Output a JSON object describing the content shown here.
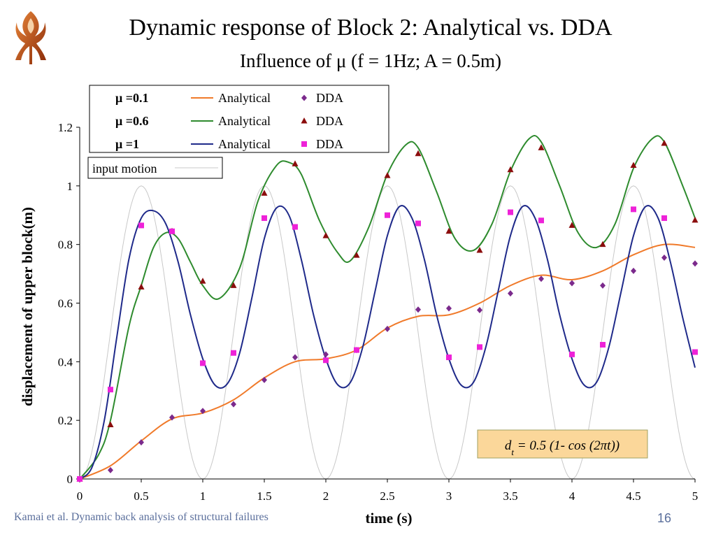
{
  "slide": {
    "title": "Dynamic response of Block 2: Analytical vs. DDA",
    "subtitle": "Influence of μ (f = 1Hz; A = 0.5m)",
    "footer": "Kamai et al. Dynamic back analysis of structural failures",
    "page_number": "16",
    "logo_icon": "university-logo-icon"
  },
  "chart_data": {
    "type": "line",
    "xlabel": "time (s)",
    "ylabel": "displacement of upper block(m)",
    "xlim": [
      0,
      5
    ],
    "ylim": [
      0,
      1.2
    ],
    "x_ticks": [
      "0",
      "0.5",
      "1",
      "1.5",
      "2",
      "2.5",
      "3",
      "3.5",
      "4",
      "4.5",
      "5"
    ],
    "y_ticks": [
      "0",
      "0.2",
      "0.4",
      "0.6",
      "0.8",
      "1",
      "1.2"
    ],
    "grid": false,
    "legend": {
      "placement": "top-left",
      "rows": [
        {
          "mu_label": "μ =0.1",
          "analytical_label": "Analytical",
          "dda_label": "DDA"
        },
        {
          "mu_label": "μ =0.6",
          "analytical_label": "Analytical",
          "dda_label": "DDA"
        },
        {
          "mu_label": "μ =1",
          "analytical_label": "Analytical",
          "dda_label": "DDA"
        }
      ],
      "input_label": "input motion"
    },
    "formula": "d_t = 0.5 (1- cos (2πt))",
    "series": [
      {
        "group": "μ =0.1",
        "kind": "analytical",
        "color": "#f07a2a",
        "x": [
          0,
          0.25,
          0.5,
          0.75,
          1.0,
          1.25,
          1.5,
          1.75,
          2.0,
          2.25,
          2.5,
          2.75,
          3.0,
          3.25,
          3.5,
          3.75,
          4.0,
          4.25,
          4.5,
          4.75,
          5.0
        ],
        "y": [
          0,
          0.045,
          0.13,
          0.205,
          0.225,
          0.27,
          0.345,
          0.4,
          0.41,
          0.44,
          0.515,
          0.555,
          0.56,
          0.6,
          0.66,
          0.695,
          0.68,
          0.71,
          0.765,
          0.8,
          0.79
        ]
      },
      {
        "group": "μ =0.1",
        "kind": "dda",
        "color": "#7b2a8c",
        "marker": "diamond",
        "x": [
          0,
          0.25,
          0.5,
          0.75,
          1.0,
          1.25,
          1.5,
          1.75,
          2.0,
          2.25,
          2.5,
          2.75,
          3.0,
          3.25,
          3.5,
          3.75,
          4.0,
          4.25,
          4.5,
          4.75,
          5.0
        ],
        "y": [
          0,
          0.03,
          0.125,
          0.21,
          0.232,
          0.255,
          0.338,
          0.415,
          0.425,
          0.44,
          0.512,
          0.578,
          0.582,
          0.576,
          0.633,
          0.683,
          0.668,
          0.66,
          0.71,
          0.755,
          0.735
        ]
      },
      {
        "group": "μ =0.6",
        "kind": "analytical",
        "color": "#2e8b2e",
        "x": [
          0,
          0.15,
          0.25,
          0.4,
          0.5,
          0.6,
          0.7,
          0.8,
          0.9,
          1.0,
          1.13,
          1.3,
          1.45,
          1.6,
          1.7,
          1.8,
          1.95,
          2.1,
          2.2,
          2.35,
          2.5,
          2.65,
          2.75,
          2.9,
          3.05,
          3.2,
          3.35,
          3.5,
          3.65,
          3.75,
          3.9,
          4.05,
          4.2,
          4.35,
          4.5,
          4.65,
          4.75,
          4.9,
          5.0
        ],
        "y": [
          0,
          0.08,
          0.2,
          0.52,
          0.66,
          0.79,
          0.84,
          0.82,
          0.74,
          0.66,
          0.615,
          0.72,
          0.95,
          1.07,
          1.08,
          1.04,
          0.88,
          0.77,
          0.745,
          0.86,
          1.04,
          1.14,
          1.13,
          0.98,
          0.82,
          0.78,
          0.87,
          1.05,
          1.16,
          1.15,
          1.0,
          0.84,
          0.79,
          0.87,
          1.06,
          1.16,
          1.15,
          1.0,
          0.89
        ]
      },
      {
        "group": "μ =0.6",
        "kind": "dda",
        "color": "#8b0d0d",
        "marker": "triangle",
        "x": [
          0,
          0.25,
          0.5,
          0.75,
          1.0,
          1.25,
          1.5,
          1.75,
          2.0,
          2.25,
          2.5,
          2.75,
          3.0,
          3.25,
          3.5,
          3.75,
          4.0,
          4.25,
          4.5,
          4.75,
          5.0
        ],
        "y": [
          0,
          0.185,
          0.655,
          0.845,
          0.675,
          0.66,
          0.975,
          1.075,
          0.83,
          0.763,
          1.035,
          1.11,
          0.845,
          0.78,
          1.055,
          1.13,
          0.865,
          0.8,
          1.07,
          1.145,
          0.883
        ]
      },
      {
        "group": "μ =1",
        "kind": "analytical",
        "color": "#1f2a8a",
        "x": [
          0,
          0.1,
          0.2,
          0.3,
          0.4,
          0.5,
          0.6,
          0.7,
          0.8,
          0.9,
          1.0,
          1.1,
          1.2,
          1.3,
          1.4,
          1.5,
          1.6,
          1.7,
          1.8,
          1.9,
          2.0,
          2.1,
          2.2,
          2.3,
          2.4,
          2.5,
          2.6,
          2.7,
          2.8,
          2.9,
          3.0,
          3.1,
          3.2,
          3.3,
          3.4,
          3.5,
          3.6,
          3.7,
          3.8,
          3.9,
          4.0,
          4.1,
          4.2,
          4.3,
          4.4,
          4.5,
          4.6,
          4.7,
          4.8,
          4.9,
          5.0
        ],
        "y": [
          0,
          0.04,
          0.2,
          0.48,
          0.75,
          0.89,
          0.915,
          0.87,
          0.74,
          0.56,
          0.41,
          0.32,
          0.325,
          0.43,
          0.62,
          0.82,
          0.925,
          0.9,
          0.75,
          0.56,
          0.41,
          0.32,
          0.33,
          0.45,
          0.64,
          0.83,
          0.93,
          0.89,
          0.75,
          0.56,
          0.41,
          0.32,
          0.33,
          0.45,
          0.64,
          0.83,
          0.93,
          0.89,
          0.75,
          0.56,
          0.41,
          0.32,
          0.33,
          0.45,
          0.64,
          0.83,
          0.93,
          0.89,
          0.74,
          0.55,
          0.38
        ]
      },
      {
        "group": "μ =1",
        "kind": "dda",
        "color": "#ee22d8",
        "marker": "square",
        "x": [
          0,
          0.25,
          0.5,
          0.75,
          1.0,
          1.25,
          1.5,
          1.75,
          2.0,
          2.25,
          2.5,
          2.75,
          3.0,
          3.25,
          3.5,
          3.75,
          4.0,
          4.25,
          4.5,
          4.75,
          5.0
        ],
        "y": [
          0,
          0.305,
          0.865,
          0.845,
          0.395,
          0.43,
          0.89,
          0.86,
          0.405,
          0.44,
          0.9,
          0.872,
          0.415,
          0.45,
          0.91,
          0.882,
          0.425,
          0.458,
          0.92,
          0.89,
          0.433
        ]
      },
      {
        "group": "input motion",
        "kind": "input",
        "color": "#c8c8c8",
        "function": "0.5*(1-cos(2*pi*t))"
      }
    ]
  }
}
